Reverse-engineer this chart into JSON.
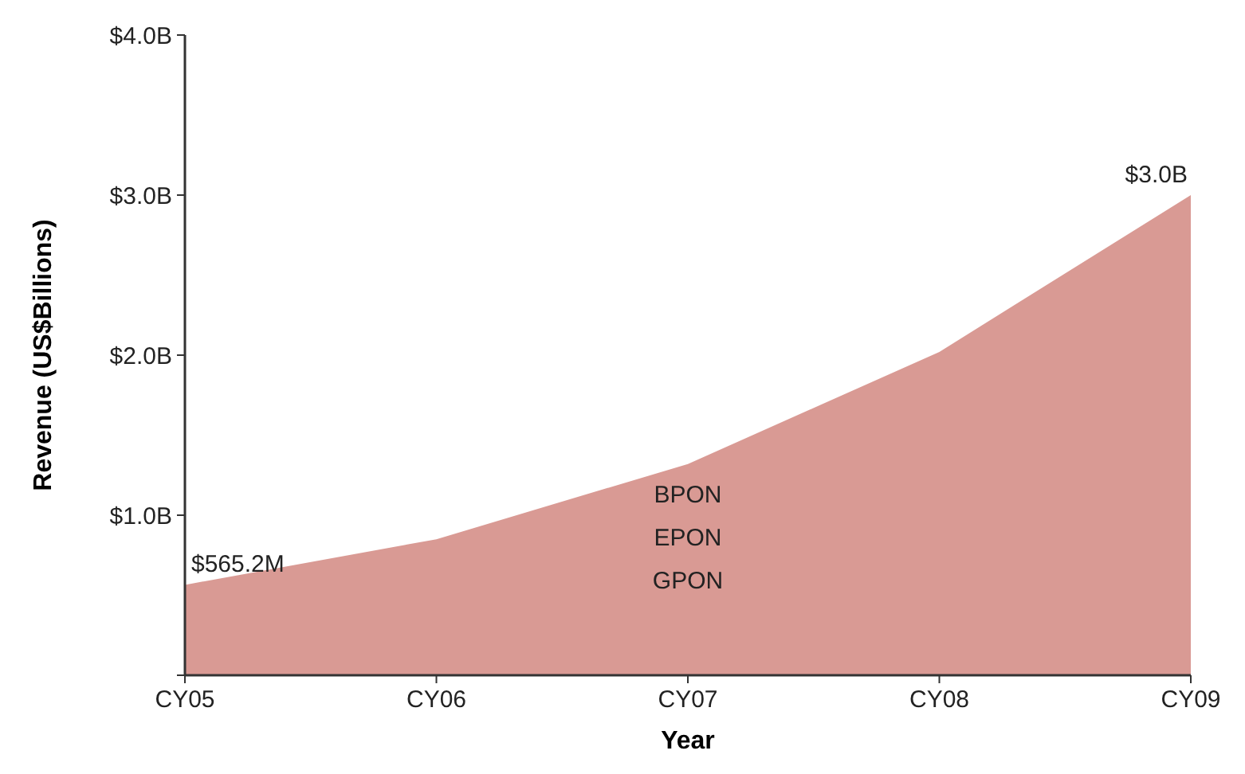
{
  "chart_data": {
    "type": "area",
    "xlabel": "Year",
    "ylabel": "Revenue (US$Billions)",
    "categories": [
      "CY05",
      "CY06",
      "CY07",
      "CY08",
      "CY09"
    ],
    "values": [
      0.5652,
      0.85,
      1.32,
      2.02,
      3.0
    ],
    "color": "#d99a94",
    "ylim": [
      0,
      4
    ],
    "yticks": [
      {
        "value": 0,
        "label": null
      },
      {
        "value": 1,
        "label": "$1.0B"
      },
      {
        "value": 2,
        "label": "$2.0B"
      },
      {
        "value": 3,
        "label": "$3.0B"
      },
      {
        "value": 4,
        "label": "$4.0B"
      }
    ],
    "annotations": [
      {
        "text": "$565.2M",
        "x": "CY05",
        "y": 0.5652
      },
      {
        "text": "$3.0B",
        "x": "CY09",
        "y": 3.0
      },
      "BPON",
      "EPON",
      "GPON"
    ],
    "grid": false
  }
}
